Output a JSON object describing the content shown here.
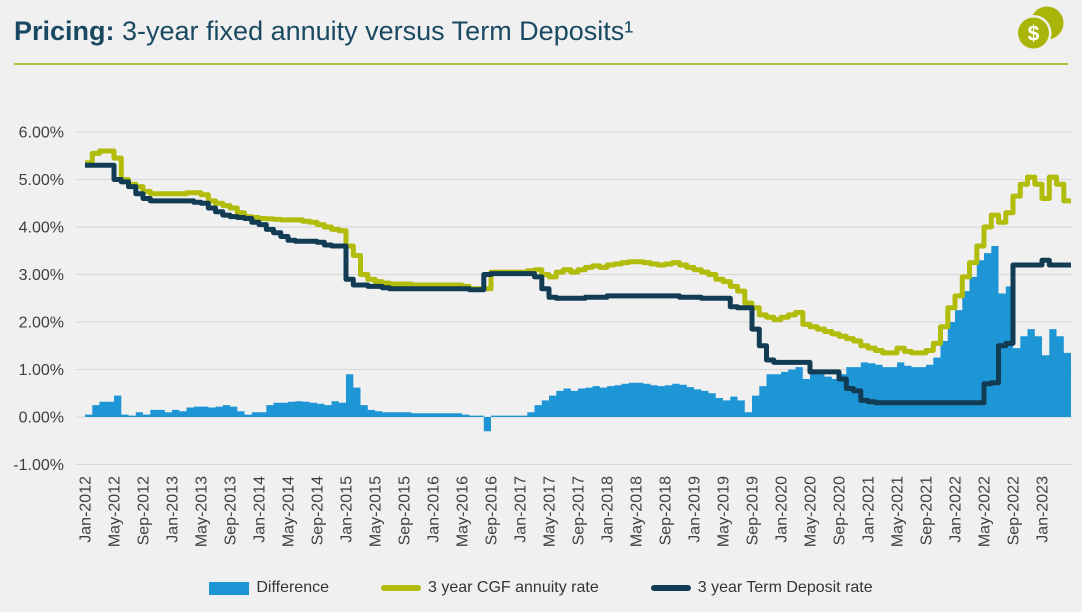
{
  "header": {
    "title_bold": "Pricing:",
    "title_rest": " 3-year fixed annuity versus Term Deposits¹",
    "icon": "coins-icon"
  },
  "colors": {
    "background": "#f0f0f0",
    "title_text": "#1a4a61",
    "header_rule": "#b4bd33",
    "gridline": "#d9d9d9",
    "axis_text": "#3f3f3f",
    "difference_blue": "#1e96d5",
    "annuity_olive": "#b1bc0b",
    "deposit_navy": "#123c53"
  },
  "legend": [
    {
      "label": "Difference",
      "swatch": "area",
      "color": "#1e96d5"
    },
    {
      "label": "3 year CGF annuity rate",
      "swatch": "line",
      "color": "#b1bc0b"
    },
    {
      "label": "3 year Term Deposit rate",
      "swatch": "line",
      "color": "#123c53"
    }
  ],
  "chart_data": {
    "type": "area",
    "subtype": "stepped area + two stepped lines",
    "x_start": "Jan-2012",
    "x_end": "May-2023",
    "x_frequency": "monthly",
    "x_tick_every_months": 4,
    "x_tick_labels": [
      "Jan-2012",
      "May-2012",
      "Sep-2012",
      "Jan-2013",
      "May-2013",
      "Sep-2013",
      "Jan-2014",
      "May-2014",
      "Sep-2014",
      "Jan-2015",
      "May-2015",
      "Sep-2015",
      "Jan-2016",
      "May-2016",
      "Sep-2016",
      "Jan-2017",
      "May-2017",
      "Sep-2017",
      "Jan-2018",
      "May-2018",
      "Sep-2018",
      "Jan-2019",
      "May-2019",
      "Sep-2019",
      "Jan-2020",
      "May-2020",
      "Sep-2020",
      "Jan-2021",
      "May-2021",
      "Sep-2021",
      "Jan-2022",
      "May-2022",
      "Sep-2022",
      "Jan-2023"
    ],
    "y_ticks": [
      {
        "v": 6,
        "label": "6.00%"
      },
      {
        "v": 5,
        "label": "5.00%"
      },
      {
        "v": 4,
        "label": "4.00%"
      },
      {
        "v": 3,
        "label": "3.00%"
      },
      {
        "v": 2,
        "label": "2.00%"
      },
      {
        "v": 1,
        "label": "1.00%"
      },
      {
        "v": 0,
        "label": "0.00%"
      },
      {
        "v": -1,
        "label": "-1.00%"
      }
    ],
    "ylim": [
      -1.0,
      6.0
    ],
    "grid": "horizontal",
    "legend_position": "bottom",
    "series": [
      {
        "name": "Difference",
        "type": "area",
        "color": "#1e96d5",
        "values": [
          0.05,
          0.25,
          0.32,
          0.32,
          0.45,
          0.05,
          0.03,
          0.1,
          0.05,
          0.15,
          0.15,
          0.1,
          0.15,
          0.12,
          0.2,
          0.22,
          0.22,
          0.2,
          0.22,
          0.25,
          0.22,
          0.12,
          0.05,
          0.1,
          0.1,
          0.25,
          0.3,
          0.3,
          0.32,
          0.33,
          0.32,
          0.3,
          0.28,
          0.25,
          0.33,
          0.3,
          0.9,
          0.62,
          0.25,
          0.15,
          0.12,
          0.1,
          0.1,
          0.1,
          0.1,
          0.08,
          0.08,
          0.08,
          0.08,
          0.08,
          0.08,
          0.08,
          0.05,
          0.03,
          0.03,
          -0.3,
          0.03,
          0.03,
          0.03,
          0.03,
          0.03,
          0.1,
          0.25,
          0.35,
          0.45,
          0.55,
          0.6,
          0.55,
          0.6,
          0.62,
          0.65,
          0.62,
          0.65,
          0.67,
          0.7,
          0.72,
          0.72,
          0.7,
          0.67,
          0.65,
          0.67,
          0.7,
          0.68,
          0.63,
          0.58,
          0.55,
          0.5,
          0.4,
          0.35,
          0.43,
          0.35,
          0.1,
          0.45,
          0.65,
          0.9,
          0.9,
          0.95,
          1.0,
          1.05,
          0.8,
          0.95,
          0.9,
          0.85,
          0.8,
          0.9,
          1.05,
          1.05,
          1.15,
          1.13,
          1.1,
          1.05,
          1.05,
          1.15,
          1.08,
          1.05,
          1.05,
          1.1,
          1.25,
          1.6,
          2.0,
          2.25,
          2.65,
          2.95,
          3.3,
          3.45,
          3.6,
          2.6,
          2.75,
          1.45,
          1.7,
          1.85,
          1.7,
          1.3,
          1.85,
          1.7,
          1.35,
          1.35
        ]
      },
      {
        "name": "3 year CGF annuity rate",
        "type": "line",
        "color": "#b1bc0b",
        "values": [
          5.35,
          5.55,
          5.6,
          5.6,
          5.45,
          5.0,
          4.9,
          4.85,
          4.75,
          4.7,
          4.7,
          4.7,
          4.7,
          4.7,
          4.72,
          4.72,
          4.68,
          4.55,
          4.5,
          4.45,
          4.4,
          4.3,
          4.22,
          4.2,
          4.18,
          4.17,
          4.16,
          4.15,
          4.15,
          4.15,
          4.12,
          4.1,
          4.05,
          4.0,
          3.95,
          3.92,
          3.6,
          3.4,
          3.0,
          2.9,
          2.85,
          2.82,
          2.8,
          2.8,
          2.8,
          2.78,
          2.78,
          2.78,
          2.78,
          2.78,
          2.78,
          2.78,
          2.75,
          2.7,
          2.7,
          2.7,
          3.05,
          3.05,
          3.05,
          3.05,
          3.05,
          3.08,
          3.1,
          3.0,
          2.95,
          3.05,
          3.1,
          3.05,
          3.1,
          3.15,
          3.18,
          3.15,
          3.2,
          3.22,
          3.25,
          3.27,
          3.27,
          3.25,
          3.22,
          3.2,
          3.22,
          3.25,
          3.2,
          3.15,
          3.1,
          3.05,
          3.0,
          2.9,
          2.85,
          2.75,
          2.65,
          2.4,
          2.3,
          2.15,
          2.1,
          2.05,
          2.1,
          2.15,
          2.2,
          1.95,
          1.9,
          1.85,
          1.8,
          1.75,
          1.7,
          1.65,
          1.6,
          1.5,
          1.45,
          1.4,
          1.35,
          1.35,
          1.45,
          1.38,
          1.35,
          1.35,
          1.4,
          1.55,
          1.9,
          2.3,
          2.55,
          2.95,
          3.25,
          3.6,
          4.0,
          4.25,
          4.1,
          4.3,
          4.65,
          4.9,
          5.05,
          4.9,
          4.6,
          5.05,
          4.9,
          4.55,
          4.55
        ]
      },
      {
        "name": "3 year Term Deposit rate",
        "type": "line",
        "color": "#123c53",
        "values": [
          5.3,
          5.3,
          5.3,
          5.3,
          5.0,
          4.95,
          4.85,
          4.7,
          4.6,
          4.55,
          4.55,
          4.55,
          4.55,
          4.55,
          4.55,
          4.52,
          4.5,
          4.4,
          4.32,
          4.25,
          4.22,
          4.2,
          4.18,
          4.1,
          4.05,
          3.95,
          3.88,
          3.8,
          3.72,
          3.7,
          3.7,
          3.7,
          3.68,
          3.62,
          3.6,
          3.6,
          2.9,
          2.78,
          2.78,
          2.75,
          2.75,
          2.72,
          2.7,
          2.7,
          2.7,
          2.7,
          2.7,
          2.7,
          2.7,
          2.7,
          2.7,
          2.7,
          2.7,
          2.68,
          2.68,
          3.0,
          3.02,
          3.02,
          3.02,
          3.02,
          3.02,
          3.02,
          2.95,
          2.7,
          2.52,
          2.5,
          2.5,
          2.5,
          2.5,
          2.52,
          2.52,
          2.52,
          2.55,
          2.55,
          2.55,
          2.55,
          2.55,
          2.55,
          2.55,
          2.55,
          2.55,
          2.55,
          2.52,
          2.52,
          2.52,
          2.5,
          2.5,
          2.5,
          2.5,
          2.32,
          2.3,
          2.3,
          1.85,
          1.5,
          1.2,
          1.15,
          1.15,
          1.15,
          1.15,
          1.15,
          0.95,
          0.95,
          0.95,
          0.95,
          0.8,
          0.6,
          0.55,
          0.35,
          0.32,
          0.3,
          0.3,
          0.3,
          0.3,
          0.3,
          0.3,
          0.3,
          0.3,
          0.3,
          0.3,
          0.3,
          0.3,
          0.3,
          0.3,
          0.3,
          0.7,
          0.72,
          1.5,
          1.55,
          3.2,
          3.2,
          3.2,
          3.2,
          3.3,
          3.2,
          3.2,
          3.2,
          3.2
        ]
      }
    ]
  }
}
